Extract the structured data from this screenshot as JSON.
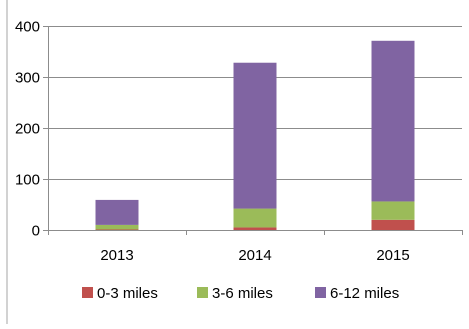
{
  "chart_data": {
    "type": "bar",
    "stacked": true,
    "categories": [
      "2013",
      "2014",
      "2015"
    ],
    "series": [
      {
        "name": "0-3 miles",
        "values": [
          1,
          5,
          20
        ],
        "color": "#c0504d"
      },
      {
        "name": "3-6 miles",
        "values": [
          9,
          37,
          36
        ],
        "color": "#9bbb59"
      },
      {
        "name": "6-12 miles",
        "values": [
          49,
          286,
          315
        ],
        "color": "#8064a2"
      }
    ],
    "title": "",
    "xlabel": "",
    "ylabel": "",
    "ylim": [
      0,
      400
    ],
    "yticks": [
      0,
      100,
      200,
      300,
      400
    ],
    "grid": true,
    "legend_position": "bottom"
  }
}
